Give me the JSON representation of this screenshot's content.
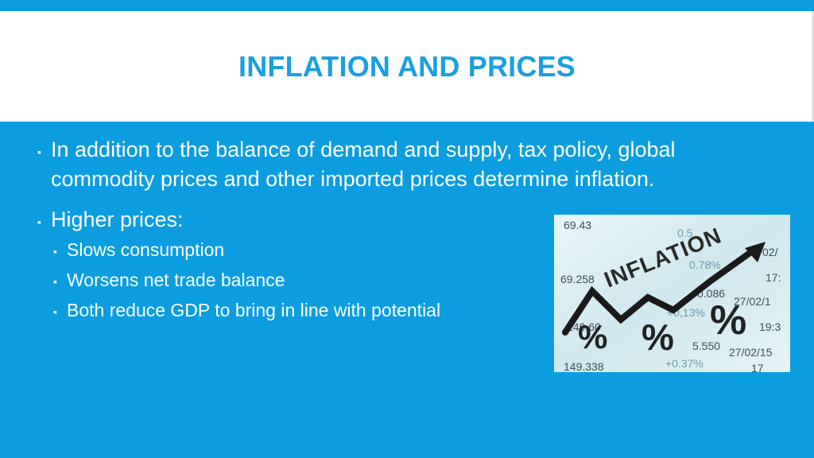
{
  "slide": {
    "title": "INFLATION AND PRICES",
    "bullets": [
      {
        "text": "In addition to the balance of demand and supply, tax policy, global commodity prices and other imported prices determine inflation."
      },
      {
        "text": "Higher prices:",
        "sub": [
          "Slows consumption",
          "Worsens net trade balance",
          "Both reduce GDP to bring in line with potential"
        ]
      }
    ]
  },
  "image": {
    "word": "INFLATION",
    "percent_glyph": "%",
    "ticker_values": [
      "69.43",
      "0.5",
      "02/",
      "69.258",
      "0.78%",
      "17:",
      "0.086",
      "27/02/1",
      "+0,13%",
      "19:3",
      "149.60",
      "5.550",
      "27/02/15",
      "149.338",
      "+0.37%",
      "17"
    ]
  },
  "colors": {
    "background": "#0b9de0",
    "title_band": "#ffffff",
    "title_text": "#1a9fe0",
    "body_text": "#ffffff"
  }
}
